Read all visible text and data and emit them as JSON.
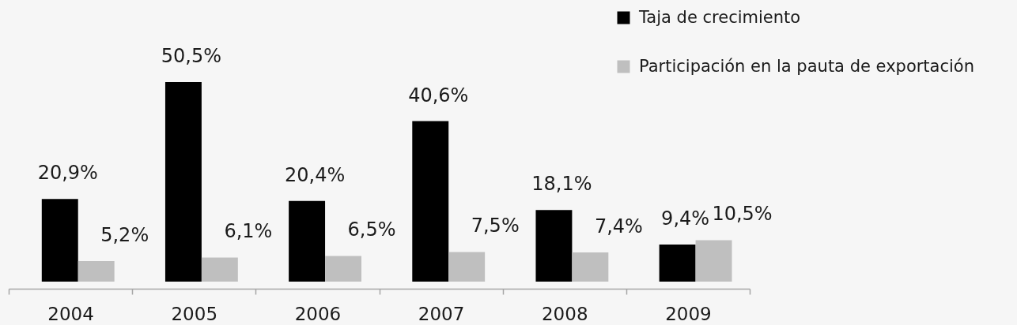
{
  "chart_data": {
    "type": "bar",
    "categories": [
      "2004",
      "2005",
      "2006",
      "2007",
      "2008",
      "2009"
    ],
    "series": [
      {
        "name": "Taja de crecimiento",
        "color": "#000000",
        "values": [
          20.9,
          50.5,
          20.4,
          40.6,
          18.1,
          9.4
        ],
        "value_labels": [
          "20,9%",
          "50,5%",
          "20,4%",
          "40,6%",
          "18,1%",
          "9,4%"
        ]
      },
      {
        "name": "Participación en la pauta de exportación",
        "color": "#bfbfbf",
        "values": [
          5.2,
          6.1,
          6.5,
          7.5,
          7.4,
          10.5
        ],
        "value_labels": [
          "5,2%",
          "6,1%",
          "6,5%",
          "7,5%",
          "7,4%",
          "10,5%"
        ]
      }
    ],
    "legend": "top right",
    "tick_labels": "x"
  }
}
